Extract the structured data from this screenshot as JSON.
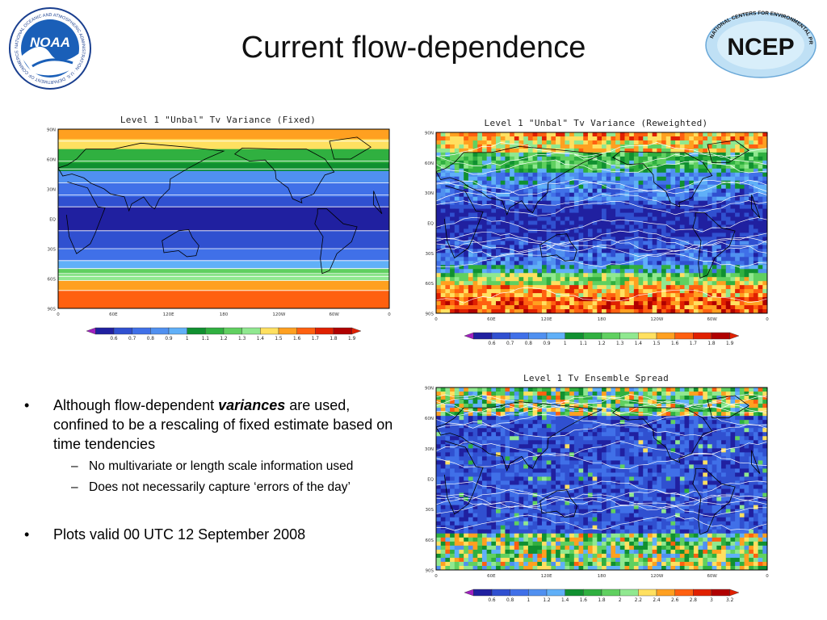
{
  "slide": {
    "title": "Current flow-dependence"
  },
  "logos": {
    "left": {
      "name": "NOAA",
      "center_text": "NOAA",
      "ring_text": "NATIONAL OCEANIC AND ATMOSPHERIC ADMINISTRATION · U.S. DEPARTMENT OF COMMERCE"
    },
    "right": {
      "name": "NCEP",
      "center_text": "NCEP",
      "ring_text": "NATIONAL CENTERS FOR ENVIRONMENTAL PREDICTION"
    }
  },
  "lat_labels": [
    "90N",
    "60N",
    "30N",
    "EQ",
    "30S",
    "60S",
    "90S"
  ],
  "lon_labels": [
    "0",
    "60E",
    "120E",
    "180",
    "120W",
    "60W",
    "0"
  ],
  "maps": [
    {
      "id": "fixed",
      "title": "Level 1 \"Unbal\" Tv Variance (Fixed)",
      "pattern": "zonal-bands",
      "colorbar": [
        "0.6",
        "0.7",
        "0.8",
        "0.9",
        "1",
        "1.1",
        "1.2",
        "1.3",
        "1.4",
        "1.5",
        "1.6",
        "1.7",
        "1.8",
        "1.9"
      ]
    },
    {
      "id": "reweighted",
      "title": "Level 1 \"Unbal\" Tv Variance (Reweighted)",
      "pattern": "flow-dependent",
      "colorbar": [
        "0.6",
        "0.7",
        "0.8",
        "0.9",
        "1",
        "1.1",
        "1.2",
        "1.3",
        "1.4",
        "1.5",
        "1.6",
        "1.7",
        "1.8",
        "1.9"
      ]
    },
    {
      "id": "spread",
      "title": "Level 1 Tv Ensemble Spread",
      "pattern": "ensemble-spread",
      "colorbar": [
        "0.6",
        "0.8",
        "1",
        "1.2",
        "1.4",
        "1.6",
        "1.8",
        "2",
        "2.2",
        "2.4",
        "2.6",
        "2.8",
        "3",
        "3.2"
      ]
    }
  ],
  "colors": {
    "palette": [
      "#2020a0",
      "#3050d0",
      "#4070e8",
      "#5090f0",
      "#60b0f8",
      "#109030",
      "#30b040",
      "#60d060",
      "#90e890",
      "#ffe060",
      "#ffa020",
      "#ff6010",
      "#e02000",
      "#b00000"
    ],
    "contour": "#ffffff",
    "coast": "#000000"
  },
  "bullets": [
    {
      "parts": {
        "before": "Although flow-dependent ",
        "emph": "variances",
        "after": " are used, confined to be a rescaling of fixed estimate based on time tendencies"
      },
      "sub": [
        "No multivariate or length scale information used",
        "Does not necessarily capture ‘errors of the day’"
      ]
    },
    {
      "text": "Plots valid 00 UTC 12 September 2008"
    }
  ],
  "bullet_symbol": "•",
  "dash_symbol": "–"
}
